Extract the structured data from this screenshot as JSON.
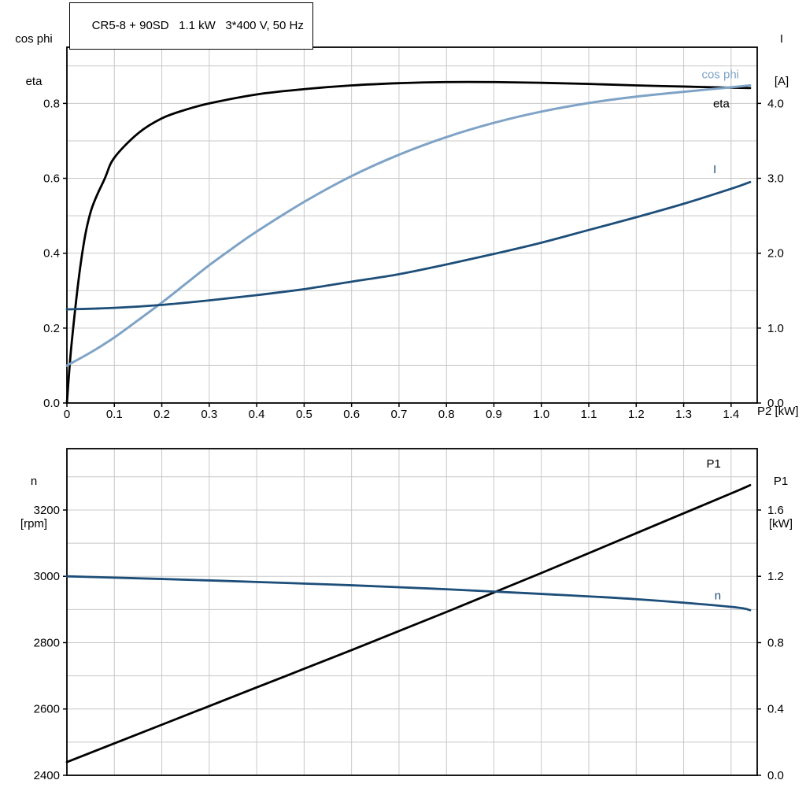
{
  "header": {
    "title": "CR5-8 + 90SD   1.1 kW   3*400 V, 50 Hz"
  },
  "axis_corner_labels": {
    "upper_left": [
      "cos phi",
      "eta"
    ],
    "upper_right": [
      "I",
      "[A]"
    ],
    "lower_left": [
      "n",
      "[rpm]"
    ],
    "lower_right": [
      "P1",
      "[kW]"
    ],
    "x_axis": "P2 [kW]"
  },
  "colors": {
    "black": "#000000",
    "light_blue": "#7fa3c6",
    "dark_blue": "#1d4e79",
    "grid": "#c8c8c8",
    "frame": "#000000"
  },
  "chart_data": [
    {
      "type": "line",
      "title": "CR5-8 + 90SD   1.1 kW   3*400 V, 50 Hz",
      "xlabel": "P2 [kW]",
      "ylabel_left": "cos phi / eta",
      "ylabel_right": "I [A]",
      "xlim": [
        0,
        1.455
      ],
      "ylim_left": [
        0,
        0.95
      ],
      "ylim_right": [
        0,
        4.75
      ],
      "grid": {
        "x_step": 0.1,
        "y_step_left": 0.1
      },
      "x_tick_values": [
        0,
        0.1,
        0.2,
        0.3,
        0.4,
        0.5,
        0.6,
        0.7,
        0.8,
        0.9,
        1.0,
        1.1,
        1.2,
        1.3,
        1.4
      ],
      "x_tick_labels": [
        "0",
        "0.1",
        "0.2",
        "0.3",
        "0.4",
        "0.5",
        "0.6",
        "0.7",
        "0.8",
        "0.9",
        "1.0",
        "1.1",
        "1.2",
        "1.3",
        "1.4"
      ],
      "y_tick_values_left": [
        0,
        0.2,
        0.4,
        0.6,
        0.8
      ],
      "y_tick_labels_left": [
        "0.0",
        "0.2",
        "0.4",
        "0.6",
        "0.8"
      ],
      "y_tick_values_right": [
        0,
        1,
        2,
        3,
        4
      ],
      "y_tick_labels_right": [
        "0.0",
        "1.0",
        "2.0",
        "3.0",
        "4.0"
      ],
      "series": [
        {
          "name": "eta",
          "axis": "left",
          "color": "black",
          "width": 2.8,
          "label": "eta",
          "label_x": 1.362,
          "label_y": 0.8,
          "x": [
            0,
            0.01,
            0.03,
            0.05,
            0.08,
            0.1,
            0.15,
            0.2,
            0.25,
            0.3,
            0.4,
            0.5,
            0.6,
            0.7,
            0.8,
            0.9,
            1.0,
            1.1,
            1.2,
            1.3,
            1.4,
            1.44
          ],
          "y": [
            0,
            0.16,
            0.38,
            0.51,
            0.6,
            0.655,
            0.72,
            0.76,
            0.783,
            0.8,
            0.824,
            0.838,
            0.848,
            0.854,
            0.857,
            0.857,
            0.855,
            0.852,
            0.848,
            0.845,
            0.842,
            0.841
          ]
        },
        {
          "name": "cos phi",
          "axis": "left",
          "color": "light_blue",
          "width": 3,
          "label": "cos phi",
          "label_x": 1.338,
          "label_y": 0.878,
          "x": [
            0,
            0.05,
            0.1,
            0.15,
            0.2,
            0.25,
            0.3,
            0.35,
            0.4,
            0.5,
            0.6,
            0.7,
            0.8,
            0.9,
            1.0,
            1.1,
            1.2,
            1.3,
            1.4,
            1.44
          ],
          "y": [
            0.1,
            0.135,
            0.175,
            0.221,
            0.268,
            0.318,
            0.368,
            0.414,
            0.458,
            0.537,
            0.606,
            0.663,
            0.71,
            0.748,
            0.778,
            0.801,
            0.818,
            0.831,
            0.843,
            0.848
          ]
        },
        {
          "name": "I",
          "axis": "right",
          "color": "dark_blue",
          "width": 2.8,
          "label": "I",
          "label_x": 1.362,
          "label_y": 3.12,
          "x": [
            0,
            0.1,
            0.2,
            0.3,
            0.4,
            0.5,
            0.6,
            0.7,
            0.8,
            0.9,
            1.0,
            1.1,
            1.2,
            1.3,
            1.4,
            1.44
          ],
          "y": [
            1.25,
            1.27,
            1.31,
            1.37,
            1.44,
            1.52,
            1.62,
            1.72,
            1.85,
            1.99,
            2.14,
            2.31,
            2.48,
            2.66,
            2.86,
            2.95
          ]
        }
      ]
    },
    {
      "type": "line",
      "title": "",
      "xlabel": "",
      "ylabel_left": "n [rpm]",
      "ylabel_right": "P1 [kW]",
      "xlim": [
        0,
        1.455
      ],
      "ylim_left": [
        2400,
        3385
      ],
      "ylim_right": [
        0,
        1.97
      ],
      "grid": {
        "x_step": 0.1,
        "y_step_left": 100
      },
      "x_tick_values": [],
      "x_tick_labels": [],
      "y_tick_values_left": [
        2400,
        2600,
        2800,
        3000,
        3200
      ],
      "y_tick_labels_left": [
        "2400",
        "2600",
        "2800",
        "3000",
        "3200"
      ],
      "y_tick_values_right": [
        0,
        0.4,
        0.8,
        1.2,
        1.6
      ],
      "y_tick_labels_right": [
        "0.0",
        "0.4",
        "0.8",
        "1.2",
        "1.6"
      ],
      "series": [
        {
          "name": "P1",
          "axis": "right",
          "color": "black",
          "width": 2.8,
          "label": "P1",
          "label_x": 1.348,
          "label_y": 1.88,
          "x": [
            0,
            0.2,
            0.4,
            0.6,
            0.8,
            1.0,
            1.2,
            1.4,
            1.44
          ],
          "y": [
            0.08,
            0.305,
            0.53,
            0.755,
            0.985,
            1.22,
            1.46,
            1.7,
            1.75
          ]
        },
        {
          "name": "n",
          "axis": "left",
          "color": "dark_blue",
          "width": 2.8,
          "label": "n",
          "label_x": 1.365,
          "label_y": 2942,
          "x": [
            0,
            0.2,
            0.4,
            0.6,
            0.8,
            1.0,
            1.2,
            1.4,
            1.44
          ],
          "y": [
            3000,
            2992,
            2983,
            2973,
            2961,
            2947,
            2931,
            2908,
            2898
          ]
        }
      ]
    }
  ]
}
